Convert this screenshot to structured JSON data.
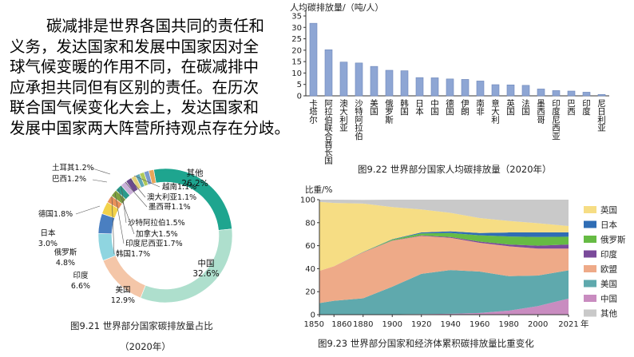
{
  "passage": {
    "lines": [
      "碳减排是世界各国共同的责任和",
      "义务，发达国家和发展中国家因对全",
      "球气候变暖的作用不同，在碳减排中",
      "应承担共同但有区别的责任。在历次",
      "联合国气候变化大会上，发达国家和",
      "发展中国家两大阵营所持观点存在分歧。"
    ]
  },
  "colors": {
    "bar": "#8ea6d4",
    "bar_edge": "#6d86b8",
    "ring_china": "#aedfcd",
    "ring_other": "#1ea58f",
    "ring_usa": "#f4c6a8"
  },
  "chart_data": [
    {
      "type": "bar",
      "ylabel": "人均碳排放量/（吨/人）",
      "ylim": [
        0,
        35
      ],
      "yticks": [
        0,
        5,
        10,
        15,
        20,
        25,
        30,
        35
      ],
      "categories": [
        "卡塔尔",
        "阿拉伯联合酋长国",
        "澳大利亚",
        "沙特阿拉伯",
        "美国",
        "俄罗斯",
        "韩国",
        "日本",
        "中国",
        "德国",
        "伊朗",
        "南非",
        "意大利",
        "英国",
        "法国",
        "墨西哥",
        "印度尼西亚",
        "巴西",
        "印度",
        "尼日利亚"
      ],
      "values": [
        31.8,
        20.2,
        14.8,
        14.4,
        12.9,
        11.2,
        11.0,
        8.0,
        7.9,
        7.4,
        7.2,
        6.5,
        4.9,
        4.8,
        4.6,
        3.0,
        2.3,
        2.1,
        1.6,
        0.6
      ],
      "caption": "图9.22  世界部分国家人均碳排放量（2020年）"
    },
    {
      "type": "pie",
      "labels": [
        {
          "name": "其他",
          "value": "26.2%"
        },
        {
          "name": "中国",
          "value": "32.6%"
        },
        {
          "name": "美国",
          "value": "12.9%"
        },
        {
          "name": "印度",
          "value": "6.6%"
        },
        {
          "name": "俄罗斯",
          "value": "4.8%"
        },
        {
          "name": "日本",
          "value": "3.0%"
        },
        {
          "name": "德国",
          "value": "1.8%"
        },
        {
          "name": "韩国",
          "value": "1.7%"
        },
        {
          "name": "印度尼西亚",
          "value": "1.7%"
        },
        {
          "name": "加拿大",
          "value": "1.5%"
        },
        {
          "name": "沙特阿拉伯",
          "value": "1.5%"
        },
        {
          "name": "墨西哥",
          "value": "1.1%"
        },
        {
          "name": "澳大利亚",
          "value": "1.1%"
        },
        {
          "name": "越南",
          "value": "1.1%"
        },
        {
          "name": "巴西",
          "value": "1.2%"
        },
        {
          "name": "土耳其",
          "value": "1.2%"
        }
      ],
      "slices": [
        {
          "name": "其他",
          "value": 26.2,
          "color": "#1ea58f"
        },
        {
          "name": "中国",
          "value": 32.6,
          "color": "#aedfcd"
        },
        {
          "name": "美国",
          "value": 12.9,
          "color": "#f4c6a8"
        },
        {
          "name": "印度",
          "value": 6.6,
          "color": "#8fd5e0"
        },
        {
          "name": "俄罗斯",
          "value": 4.8,
          "color": "#4a7fc1"
        },
        {
          "name": "日本",
          "value": 3.0,
          "color": "#f2d24a"
        },
        {
          "name": "德国",
          "value": 1.8,
          "color": "#e9925a"
        },
        {
          "name": "韩国",
          "value": 1.7,
          "color": "#7ea03f"
        },
        {
          "name": "印度尼西亚",
          "value": 1.7,
          "color": "#2a9a8a"
        },
        {
          "name": "加拿大",
          "value": 1.5,
          "color": "#c9b0d8"
        },
        {
          "name": "沙特阿拉伯",
          "value": 1.5,
          "color": "#6c4b8e"
        },
        {
          "name": "墨西哥",
          "value": 1.1,
          "color": "#e3d27a"
        },
        {
          "name": "澳大利亚",
          "value": 1.1,
          "color": "#5fa8b5"
        },
        {
          "name": "越南",
          "value": 1.1,
          "color": "#b0c95a"
        },
        {
          "name": "巴西",
          "value": 1.2,
          "color": "#7a9ad0"
        },
        {
          "name": "土耳其",
          "value": 1.2,
          "color": "#e8a65a"
        }
      ],
      "caption": "图9.21  世界部分国家碳排放量占比",
      "caption2": "（2020年）"
    },
    {
      "type": "area",
      "ylabel": "比重/%",
      "xlabel": "年",
      "ylim": [
        0,
        100
      ],
      "yticks": [
        0,
        20,
        40,
        60,
        80,
        100
      ],
      "xticks": [
        1850,
        1860,
        1880,
        1900,
        1920,
        1940,
        1960,
        1980,
        2000,
        2021
      ],
      "x": [
        1850,
        1860,
        1880,
        1900,
        1920,
        1940,
        1960,
        1980,
        2000,
        2021
      ],
      "series": [
        {
          "name": "中国",
          "color": "#c98cc0",
          "values": [
            0.1,
            0.1,
            0.2,
            0.3,
            0.5,
            0.8,
            1.5,
            3.5,
            7.5,
            14.0
          ]
        },
        {
          "name": "美国",
          "color": "#5fa9ad",
          "values": [
            10.0,
            12.0,
            14.0,
            24.0,
            35.0,
            38.0,
            36.0,
            30.0,
            26.5,
            24.5
          ]
        },
        {
          "name": "欧盟",
          "color": "#eeaa88",
          "values": [
            28.0,
            30.0,
            40.0,
            40.0,
            33.0,
            28.0,
            25.0,
            26.0,
            23.5,
            19.0
          ]
        },
        {
          "name": "印度",
          "color": "#7a4a9a",
          "values": [
            0.0,
            0.0,
            0.1,
            0.2,
            0.4,
            0.7,
            1.0,
            1.5,
            2.5,
            3.5
          ]
        },
        {
          "name": "俄罗斯",
          "color": "#66bb44",
          "values": [
            0.0,
            0.0,
            0.2,
            0.8,
            1.8,
            3.5,
            5.5,
            7.0,
            7.5,
            6.8
          ]
        },
        {
          "name": "日本",
          "color": "#2f6db5",
          "values": [
            0.0,
            0.0,
            0.1,
            0.3,
            0.8,
            1.5,
            2.0,
            3.5,
            4.0,
            3.8
          ]
        },
        {
          "name": "英国",
          "color": "#f6dd84",
          "values": [
            60.0,
            55.0,
            42.0,
            28.0,
            20.0,
            16.0,
            13.0,
            10.0,
            8.0,
            5.5
          ]
        },
        {
          "name": "其他",
          "color": "#c9c9c9",
          "values": [
            1.9,
            2.9,
            3.2,
            6.4,
            8.5,
            11.5,
            16.0,
            18.5,
            20.5,
            22.9
          ]
        }
      ],
      "legend": [
        "英国",
        "日本",
        "俄罗斯",
        "印度",
        "欧盟",
        "美国",
        "中国",
        "其他"
      ],
      "caption": "图9.23  世界部分国家和经济体累积碳排放量比重变化"
    }
  ]
}
